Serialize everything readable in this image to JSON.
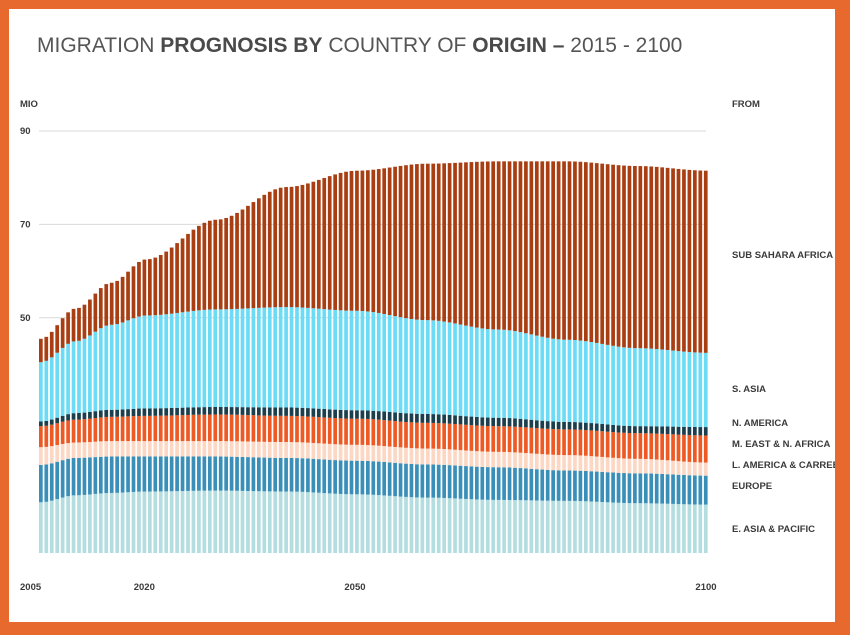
{
  "chart_data": {
    "type": "area",
    "title": {
      "prefix": "MIGRATION ",
      "bold1": "PROGNOSIS BY",
      "mid": " COUNTRY OF ",
      "bold2": "ORIGIN",
      "dash": " – ",
      "range": "2015 - 2100"
    },
    "ylabel": "MIO",
    "legend_title": "FROM",
    "x_ticks": [
      "2005",
      "2020",
      "2050",
      "2100"
    ],
    "y_ticks": [
      90,
      70,
      50
    ],
    "xlim": [
      2005,
      2100
    ],
    "series": [
      {
        "name": "E. ASIA & PACIFIC",
        "color": "#b4dde0"
      },
      {
        "name": "EUROPE",
        "color": "#3a8fb8"
      },
      {
        "name": "L. AMERICA & CARREB.",
        "color": "#fcd8c4"
      },
      {
        "name": "M. EAST & N. AFRICA",
        "color": "#ee5a24"
      },
      {
        "name": "N. AMERICA",
        "color": "#1c3f4d"
      },
      {
        "name": "S. ASIA",
        "color": "#6cdcf6"
      },
      {
        "name": "SUB SAHARA AFRICA",
        "color": "#a83e12"
      }
    ],
    "cumulative_boundaries": {
      "x": [
        2005,
        2010,
        2015,
        2020,
        2030,
        2040,
        2050,
        2060,
        2070,
        2080,
        2090,
        2100
      ],
      "tops": [
        [
          10.5,
          12,
          12.5,
          12.8,
          13,
          12.8,
          12.2,
          11.5,
          11,
          10.8,
          10.3,
          10
        ],
        [
          18.5,
          20,
          20.3,
          20.3,
          20.3,
          20,
          19.4,
          18.6,
          18,
          17.3,
          16.7,
          16.2
        ],
        [
          22.3,
          23.3,
          23.6,
          23.6,
          23.6,
          23.4,
          22.8,
          22,
          21.3,
          20.6,
          19.8,
          19
        ],
        [
          26.8,
          28.2,
          28.8,
          29,
          29.3,
          29,
          28.4,
          27.5,
          26.8,
          26.1,
          25.3,
          24.8
        ],
        [
          27.8,
          29.6,
          30.3,
          30.6,
          30.9,
          30.8,
          30.2,
          29.4,
          28.6,
          27.7,
          26.8,
          26.6
        ],
        [
          40.5,
          45,
          48.5,
          50.5,
          51.8,
          52.3,
          51.5,
          49.5,
          47.5,
          45.3,
          43.5,
          42.5
        ],
        [
          45.5,
          52,
          57.5,
          62.5,
          71,
          78,
          81.5,
          83,
          83.5,
          83.5,
          82.5,
          81.5
        ]
      ]
    }
  }
}
